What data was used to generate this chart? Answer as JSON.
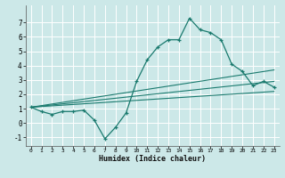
{
  "xlabel": "Humidex (Indice chaleur)",
  "bg_color": "#cce8e8",
  "grid_color": "#ffffff",
  "line_color": "#1a7a6e",
  "xlim": [
    -0.5,
    23.5
  ],
  "ylim": [
    -1.6,
    8.2
  ],
  "xticks": [
    0,
    1,
    2,
    3,
    4,
    5,
    6,
    7,
    8,
    9,
    10,
    11,
    12,
    13,
    14,
    15,
    16,
    17,
    18,
    19,
    20,
    21,
    22,
    23
  ],
  "yticks": [
    -1,
    0,
    1,
    2,
    3,
    4,
    5,
    6,
    7
  ],
  "main_x": [
    0,
    1,
    2,
    3,
    4,
    5,
    6,
    7,
    8,
    9,
    10,
    11,
    12,
    13,
    14,
    15,
    16,
    17,
    18,
    19,
    20,
    21,
    22,
    23
  ],
  "main_y": [
    1.1,
    0.8,
    0.6,
    0.8,
    0.8,
    0.9,
    0.2,
    -1.1,
    -0.3,
    0.7,
    2.9,
    4.4,
    5.3,
    5.8,
    5.8,
    7.3,
    6.5,
    6.3,
    5.8,
    4.1,
    3.6,
    2.6,
    2.9,
    2.5
  ],
  "line1_x": [
    0,
    23
  ],
  "line1_y": [
    1.1,
    2.2
  ],
  "line2_x": [
    0,
    23
  ],
  "line2_y": [
    1.1,
    2.9
  ],
  "line3_x": [
    0,
    23
  ],
  "line3_y": [
    1.1,
    3.7
  ]
}
